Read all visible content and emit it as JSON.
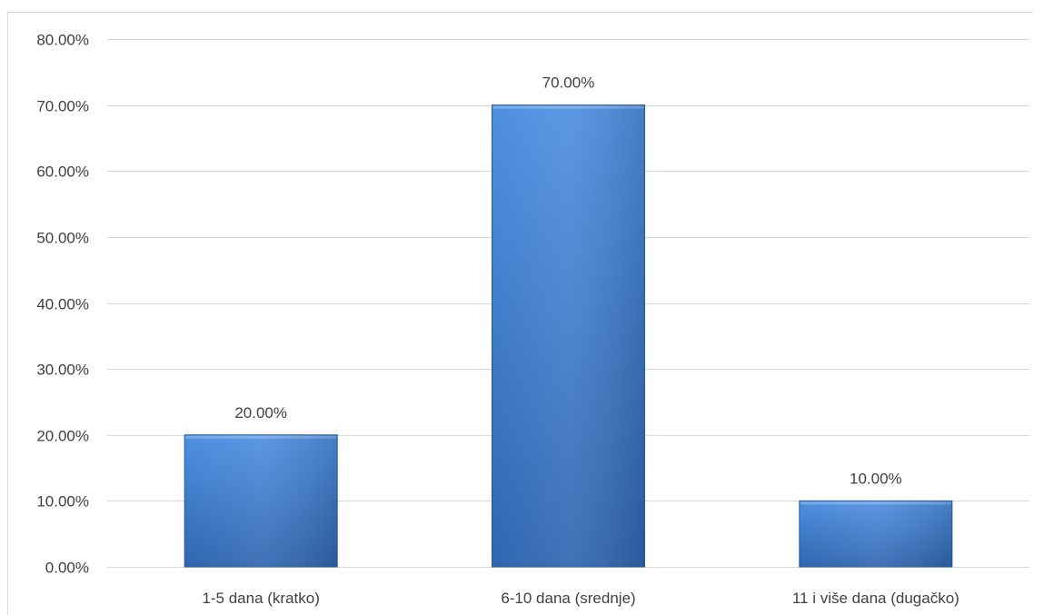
{
  "chart_data": {
    "type": "bar",
    "title": "",
    "xlabel": "",
    "ylabel": "",
    "categories": [
      "1-5 dana (kratko)",
      "6-10 dana (srednje)",
      "11 i više dana (dugačko)"
    ],
    "values": [
      20,
      70,
      10
    ],
    "value_labels": [
      "20.00%",
      "70.00%",
      "10.00%"
    ],
    "ylim": [
      0,
      80
    ],
    "yticks": [
      0,
      10,
      20,
      30,
      40,
      50,
      60,
      70,
      80
    ],
    "ytick_labels": [
      "0.00%",
      "10.00%",
      "20.00%",
      "30.00%",
      "40.00%",
      "50.00%",
      "60.00%",
      "70.00%",
      "80.00%"
    ],
    "grid": true,
    "legend": "none",
    "colors": {
      "bar_light": "#5b9ae6",
      "bar_mid": "#3f7fd2",
      "bar_dark": "#2a5fa5",
      "grid": "#d9d9d9",
      "text": "#404040"
    }
  }
}
